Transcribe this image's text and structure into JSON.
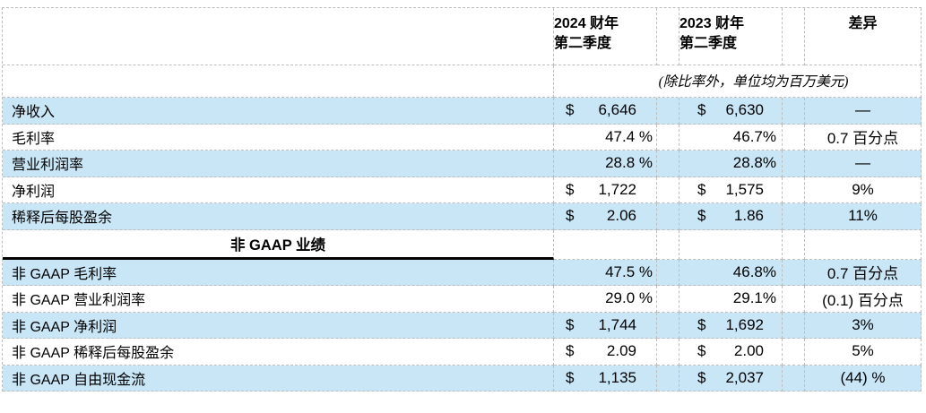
{
  "colors": {
    "row_highlight": "#C9E6F7",
    "grid_line": "#BDBDBD",
    "section_divider": "#000000"
  },
  "header": {
    "col_2024": {
      "line1": "2024 财年",
      "line2": "第二季度"
    },
    "col_2023": {
      "line1": "2023 财年",
      "line2": "第二季度"
    },
    "col_diff": "差异",
    "note": "(除比率外，单位均为百万美元)"
  },
  "rows": [
    {
      "type": "data",
      "label": "净收入",
      "shaded": true,
      "fy2024": {
        "prefix": "$",
        "value": "6,646",
        "suffix": ""
      },
      "fy2023": {
        "prefix": "$",
        "value": "6,630",
        "suffix": ""
      },
      "diff": "—"
    },
    {
      "type": "data",
      "label": "毛利率",
      "shaded": false,
      "fy2024": {
        "prefix": "",
        "value": "47.4",
        "suffix": " %"
      },
      "fy2023": {
        "prefix": "",
        "value": "46.7",
        "suffix": "%"
      },
      "diff": "0.7 百分点"
    },
    {
      "type": "data",
      "label": "营业利润率",
      "shaded": true,
      "fy2024": {
        "prefix": "",
        "value": "28.8",
        "suffix": " %"
      },
      "fy2023": {
        "prefix": "",
        "value": "28.8",
        "suffix": "%"
      },
      "diff": "—"
    },
    {
      "type": "data",
      "label": "净利润",
      "shaded": false,
      "fy2024": {
        "prefix": "$",
        "value": "1,722",
        "suffix": ""
      },
      "fy2023": {
        "prefix": "$",
        "value": "1,575",
        "suffix": ""
      },
      "diff": "9%"
    },
    {
      "type": "data",
      "label": "稀释后每股盈余",
      "shaded": true,
      "fy2024": {
        "prefix": "$",
        "value": "2.06",
        "suffix": ""
      },
      "fy2023": {
        "prefix": "$",
        "value": "1.86",
        "suffix": ""
      },
      "diff": "11%"
    },
    {
      "type": "section",
      "label": "非 GAAP 业绩"
    },
    {
      "type": "data",
      "label": "非 GAAP 毛利率",
      "shaded": true,
      "fy2024": {
        "prefix": "",
        "value": "47.5",
        "suffix": " %"
      },
      "fy2023": {
        "prefix": "",
        "value": "46.8",
        "suffix": "%"
      },
      "diff": "0.7 百分点"
    },
    {
      "type": "data",
      "label": "非 GAAP 营业利润率",
      "shaded": false,
      "fy2024": {
        "prefix": "",
        "value": "29.0",
        "suffix": " %"
      },
      "fy2023": {
        "prefix": "",
        "value": "29.1",
        "suffix": "%"
      },
      "diff": "(0.1) 百分点"
    },
    {
      "type": "data",
      "label": "非 GAAP 净利润",
      "shaded": true,
      "fy2024": {
        "prefix": "$",
        "value": "1,744",
        "suffix": ""
      },
      "fy2023": {
        "prefix": "$",
        "value": "1,692",
        "suffix": ""
      },
      "diff": "3%"
    },
    {
      "type": "data",
      "label": "非 GAAP 稀释后每股盈余",
      "shaded": false,
      "fy2024": {
        "prefix": "$",
        "value": "2.09",
        "suffix": ""
      },
      "fy2023": {
        "prefix": "$",
        "value": "2.00",
        "suffix": ""
      },
      "diff": "5%"
    },
    {
      "type": "data",
      "label": "非 GAAP 自由现金流",
      "shaded": true,
      "fy2024": {
        "prefix": "$",
        "value": "1,135",
        "suffix": ""
      },
      "fy2023": {
        "prefix": "$",
        "value": "2,037",
        "suffix": ""
      },
      "diff": "(44) %"
    }
  ]
}
